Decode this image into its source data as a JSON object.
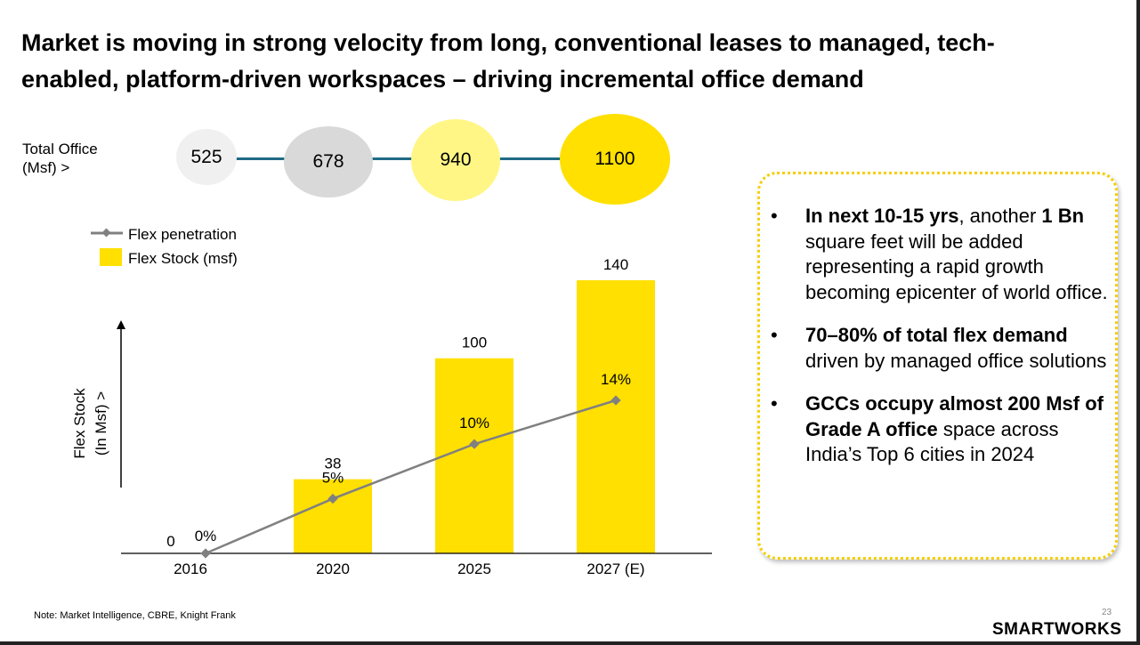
{
  "title": "Market is moving in strong velocity from long, conventional leases to managed, tech-enabled, platform-driven workspaces – driving incremental office demand",
  "total_office": {
    "label_line1": "Total Office",
    "label_line2": "(Msf) >",
    "bubbles": [
      {
        "value": "525",
        "color": "#f0f0f0"
      },
      {
        "value": "678",
        "color": "#d9d9d9"
      },
      {
        "value": "940",
        "color": "#fff685"
      },
      {
        "value": "1100",
        "color": "#ffe000"
      }
    ],
    "connector_color": "#1f6a85"
  },
  "chart_data": {
    "type": "bar+line",
    "categories": [
      "2016",
      "2020",
      "2025",
      "2027 (E)"
    ],
    "series": [
      {
        "name": "Flex Stock (msf)",
        "type": "bar",
        "values": [
          0,
          38,
          100,
          140
        ],
        "labels": [
          "0",
          "38",
          "100",
          "140"
        ],
        "color": "#ffe000"
      },
      {
        "name": "Flex penetration",
        "type": "line",
        "values": [
          0,
          5,
          10,
          14
        ],
        "labels": [
          "0%",
          "5%",
          "10%",
          "14%"
        ],
        "color": "#808080"
      }
    ],
    "ylabel_line1": "Flex Stock",
    "ylabel_line2": "(In Msf) >",
    "bar_ylim": [
      0,
      140
    ],
    "line_ylim": [
      0,
      14
    ],
    "legend": "top-left"
  },
  "callout": {
    "bullet": "•",
    "items": [
      {
        "bold1": "In next 10-15 yrs",
        "text1": ", another ",
        "bold2": "1 Bn",
        "text2": " square feet will be added representing a rapid growth becoming epicenter of world office."
      },
      {
        "bold1": "70–80% of total flex demand",
        "text1": " driven by managed office solutions",
        "bold2": "",
        "text2": ""
      },
      {
        "bold1": "GCCs occupy almost 200 Msf of Grade A office",
        "text1": " space across India’s Top 6 cities in 2024",
        "bold2": "",
        "text2": ""
      }
    ]
  },
  "footer": {
    "note": "Note: Market Intelligence, CBRE, Knight Frank",
    "page_number": "23",
    "logo": "SMARTWORKS"
  }
}
